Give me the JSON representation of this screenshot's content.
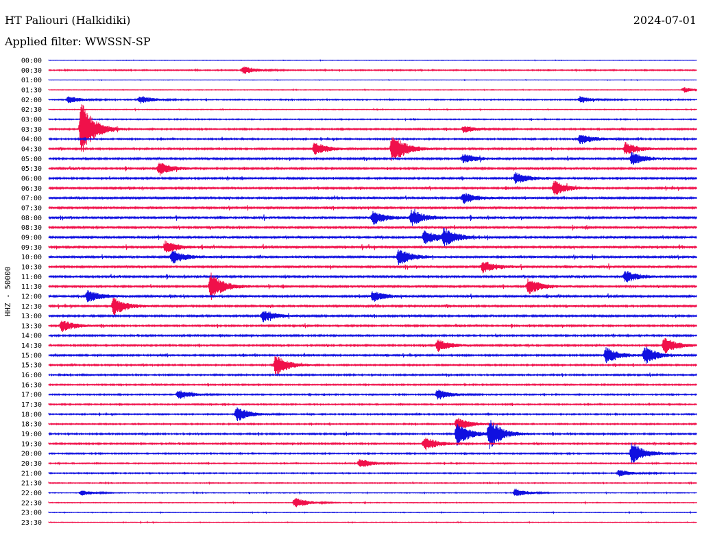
{
  "header": {
    "station": "HT Paliouri (Halkidiki)",
    "date": "2024-07-01",
    "filter": "Applied filter: WWSSN-SP"
  },
  "chart_data": {
    "type": "line",
    "title": "HT Paliouri (Halkidiki)",
    "ylabel": "HHZ - 50000",
    "row_labels": [
      "00:00",
      "00:30",
      "01:00",
      "01:30",
      "02:00",
      "02:30",
      "03:00",
      "03:30",
      "04:00",
      "04:30",
      "05:00",
      "05:30",
      "06:00",
      "06:30",
      "07:00",
      "07:30",
      "08:00",
      "08:30",
      "09:00",
      "09:30",
      "10:00",
      "10:30",
      "11:00",
      "11:30",
      "12:00",
      "12:30",
      "13:00",
      "13:30",
      "14:00",
      "14:30",
      "15:00",
      "15:30",
      "16:00",
      "16:30",
      "17:00",
      "17:30",
      "18:00",
      "18:30",
      "19:00",
      "19:30",
      "20:00",
      "20:30",
      "21:00",
      "21:30",
      "22:00",
      "22:30",
      "23:00",
      "23:30"
    ],
    "colors": {
      "even_rows": "#1010e0",
      "odd_rows": "#f0104a"
    },
    "noise_level": [
      0.2,
      0.6,
      0.2,
      0.3,
      0.6,
      0.35,
      0.55,
      0.8,
      0.8,
      0.9,
      1.0,
      1.0,
      1.0,
      1.0,
      1.1,
      1.1,
      1.2,
      1.2,
      1.2,
      1.2,
      1.2,
      1.2,
      1.1,
      1.1,
      1.1,
      1.0,
      1.0,
      0.9,
      0.9,
      0.9,
      0.9,
      0.8,
      0.8,
      0.7,
      0.7,
      0.7,
      0.7,
      0.7,
      0.8,
      0.8,
      0.7,
      0.6,
      0.6,
      0.5,
      0.4,
      0.4,
      0.3,
      0.3
    ],
    "events": [
      {
        "row": 1,
        "x": 0.3,
        "amp": 6
      },
      {
        "row": 3,
        "x": 0.98,
        "amp": 4
      },
      {
        "row": 4,
        "x": 0.03,
        "amp": 5
      },
      {
        "row": 4,
        "x": 0.14,
        "amp": 6
      },
      {
        "row": 4,
        "x": 0.82,
        "amp": 5
      },
      {
        "row": 7,
        "x": 0.05,
        "amp": 42
      },
      {
        "row": 7,
        "x": 0.64,
        "amp": 5
      },
      {
        "row": 8,
        "x": 0.82,
        "amp": 8
      },
      {
        "row": 9,
        "x": 0.41,
        "amp": 10
      },
      {
        "row": 9,
        "x": 0.53,
        "amp": 24
      },
      {
        "row": 9,
        "x": 0.89,
        "amp": 9
      },
      {
        "row": 10,
        "x": 0.64,
        "amp": 7
      },
      {
        "row": 10,
        "x": 0.9,
        "amp": 10
      },
      {
        "row": 11,
        "x": 0.17,
        "amp": 10
      },
      {
        "row": 12,
        "x": 0.72,
        "amp": 9
      },
      {
        "row": 13,
        "x": 0.78,
        "amp": 11
      },
      {
        "row": 14,
        "x": 0.64,
        "amp": 8
      },
      {
        "row": 16,
        "x": 0.5,
        "amp": 10
      },
      {
        "row": 16,
        "x": 0.56,
        "amp": 11
      },
      {
        "row": 18,
        "x": 0.58,
        "amp": 11
      },
      {
        "row": 18,
        "x": 0.61,
        "amp": 12
      },
      {
        "row": 19,
        "x": 0.18,
        "amp": 9
      },
      {
        "row": 20,
        "x": 0.19,
        "amp": 10
      },
      {
        "row": 20,
        "x": 0.54,
        "amp": 12
      },
      {
        "row": 21,
        "x": 0.67,
        "amp": 9
      },
      {
        "row": 22,
        "x": 0.89,
        "amp": 9
      },
      {
        "row": 23,
        "x": 0.25,
        "amp": 20
      },
      {
        "row": 23,
        "x": 0.74,
        "amp": 12
      },
      {
        "row": 24,
        "x": 0.06,
        "amp": 9
      },
      {
        "row": 24,
        "x": 0.5,
        "amp": 8
      },
      {
        "row": 25,
        "x": 0.1,
        "amp": 14
      },
      {
        "row": 26,
        "x": 0.33,
        "amp": 9
      },
      {
        "row": 27,
        "x": 0.02,
        "amp": 9
      },
      {
        "row": 29,
        "x": 0.6,
        "amp": 9
      },
      {
        "row": 29,
        "x": 0.95,
        "amp": 12
      },
      {
        "row": 30,
        "x": 0.86,
        "amp": 12
      },
      {
        "row": 30,
        "x": 0.92,
        "amp": 13
      },
      {
        "row": 31,
        "x": 0.35,
        "amp": 16
      },
      {
        "row": 34,
        "x": 0.2,
        "amp": 7
      },
      {
        "row": 34,
        "x": 0.6,
        "amp": 8
      },
      {
        "row": 36,
        "x": 0.29,
        "amp": 11
      },
      {
        "row": 37,
        "x": 0.63,
        "amp": 10
      },
      {
        "row": 38,
        "x": 0.63,
        "amp": 18
      },
      {
        "row": 38,
        "x": 0.68,
        "amp": 22
      },
      {
        "row": 39,
        "x": 0.58,
        "amp": 11
      },
      {
        "row": 40,
        "x": 0.9,
        "amp": 17
      },
      {
        "row": 41,
        "x": 0.48,
        "amp": 7
      },
      {
        "row": 42,
        "x": 0.88,
        "amp": 5
      },
      {
        "row": 44,
        "x": 0.05,
        "amp": 4
      },
      {
        "row": 44,
        "x": 0.72,
        "amp": 6
      },
      {
        "row": 45,
        "x": 0.38,
        "amp": 8
      }
    ]
  }
}
